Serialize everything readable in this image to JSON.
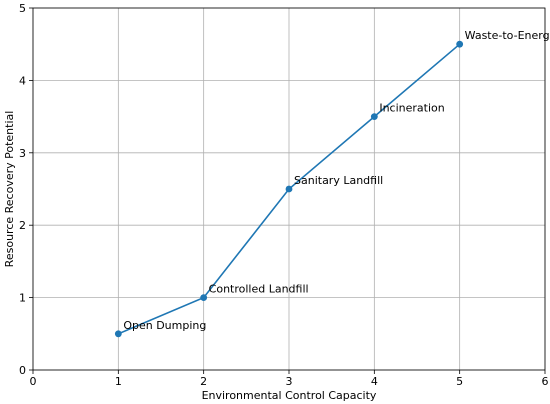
{
  "chart_data": {
    "type": "line",
    "title": "",
    "xlabel": "Environmental Control Capacity",
    "ylabel": "Resource Recovery Potential",
    "xlim": [
      0,
      6
    ],
    "ylim": [
      0,
      5
    ],
    "xticks": [
      "0",
      "1",
      "2",
      "3",
      "4",
      "5",
      "6"
    ],
    "yticks": [
      "0",
      "1",
      "2",
      "3",
      "4",
      "5"
    ],
    "grid": true,
    "series_color": "#1f77b4",
    "points": [
      {
        "x": 1,
        "y": 0.5,
        "label": "Open Dumping"
      },
      {
        "x": 2,
        "y": 1.0,
        "label": "Controlled Landfill"
      },
      {
        "x": 3,
        "y": 2.5,
        "label": "Sanitary Landfill"
      },
      {
        "x": 4,
        "y": 3.5,
        "label": "Incineration"
      },
      {
        "x": 5,
        "y": 4.5,
        "label": "Waste-to-Energy"
      }
    ]
  }
}
